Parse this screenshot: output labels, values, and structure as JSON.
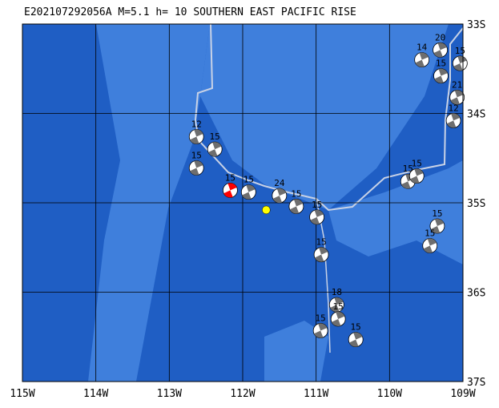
{
  "map": {
    "title": "E202107292056A M=5.1 h= 10 SOUTHERN EAST PACIFIC RISE",
    "lonlim": [
      -115,
      -109
    ],
    "latlim": [
      -33,
      -37
    ],
    "lonticks": [
      {
        "value": -115,
        "label": "115W"
      },
      {
        "value": -114,
        "label": "114W"
      },
      {
        "value": -113,
        "label": "113W"
      },
      {
        "value": -112,
        "label": "112W"
      },
      {
        "value": -111,
        "label": "111W"
      },
      {
        "value": -110,
        "label": "110W"
      },
      {
        "value": -109,
        "label": "109W"
      }
    ],
    "latticks": [
      {
        "value": -33,
        "label": "33S"
      },
      {
        "value": -34,
        "label": "34S"
      },
      {
        "value": -35,
        "label": "35S"
      },
      {
        "value": -36,
        "label": "36S"
      },
      {
        "value": -37,
        "label": "37S"
      }
    ],
    "epicenter": {
      "lon": -111.68,
      "lat": -35.08,
      "color": "#ffff00"
    },
    "events": [
      {
        "lon": -109.56,
        "lat": -33.4,
        "depth": "14"
      },
      {
        "lon": -109.31,
        "lat": -33.29,
        "depth": "20"
      },
      {
        "lon": -109.3,
        "lat": -33.58,
        "depth": "15"
      },
      {
        "lon": -109.04,
        "lat": -33.44,
        "depth": "15"
      },
      {
        "lon": -109.08,
        "lat": -33.82,
        "depth": "21"
      },
      {
        "lon": -109.13,
        "lat": -34.08,
        "depth": "12"
      },
      {
        "lon": -112.63,
        "lat": -34.26,
        "depth": "12"
      },
      {
        "lon": -112.38,
        "lat": -34.4,
        "depth": "15"
      },
      {
        "lon": -112.63,
        "lat": -34.61,
        "depth": "15"
      },
      {
        "lon": -112.17,
        "lat": -34.86,
        "depth": "15",
        "color": "#ff0000"
      },
      {
        "lon": -111.92,
        "lat": -34.88,
        "depth": "15"
      },
      {
        "lon": -111.5,
        "lat": -34.92,
        "depth": "24"
      },
      {
        "lon": -111.27,
        "lat": -35.04,
        "depth": "15"
      },
      {
        "lon": -110.99,
        "lat": -35.16,
        "depth": "15"
      },
      {
        "lon": -110.93,
        "lat": -35.58,
        "depth": "15"
      },
      {
        "lon": -110.72,
        "lat": -36.14,
        "depth": "18"
      },
      {
        "lon": -110.94,
        "lat": -36.43,
        "depth": "15"
      },
      {
        "lon": -110.7,
        "lat": -36.3,
        "depth": "15"
      },
      {
        "lon": -110.46,
        "lat": -36.53,
        "depth": "15"
      },
      {
        "lon": -109.75,
        "lat": -34.76,
        "depth": "15"
      },
      {
        "lon": -109.63,
        "lat": -34.7,
        "depth": "15"
      },
      {
        "lon": -109.35,
        "lat": -35.26,
        "depth": "15"
      },
      {
        "lon": -109.45,
        "lat": -35.48,
        "depth": "15"
      }
    ]
  }
}
